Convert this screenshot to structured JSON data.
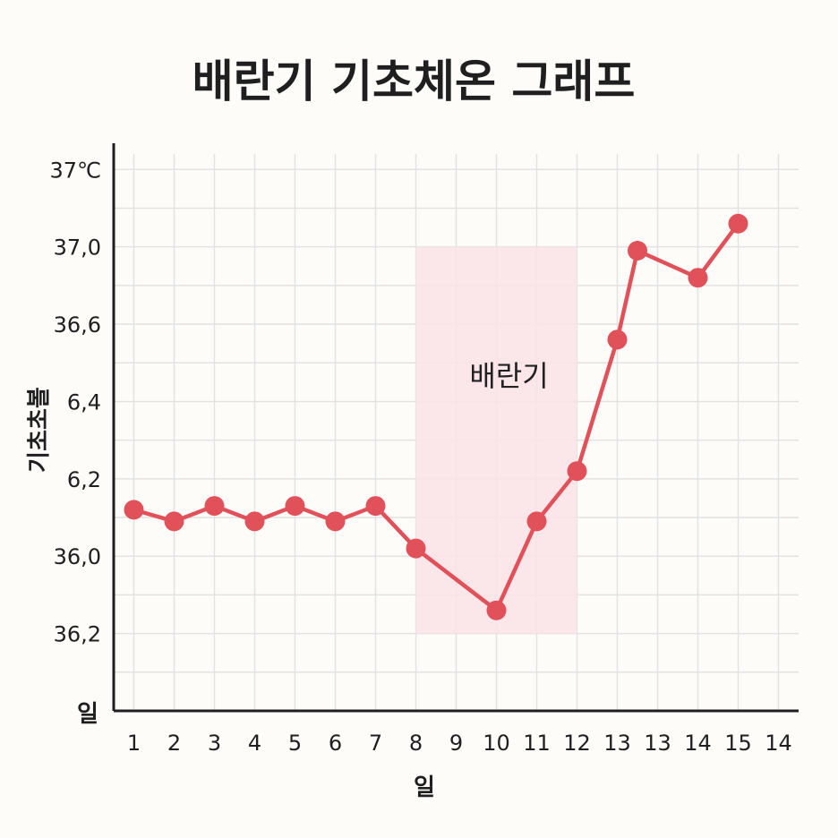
{
  "colors": {
    "background": "#fdfcf9",
    "line": "#e0515a",
    "marker": "#e0515a",
    "region": "#fbe3e8",
    "grid": "#e2e2e2",
    "axis": "#1f1f1f",
    "text": "#1f1f1f"
  },
  "chart_data": {
    "type": "line",
    "title": "배란기 기초체온 그래프",
    "xlabel": "일",
    "ylabel": "기초초볼",
    "corner_label": "일",
    "x_tick_labels": [
      "1",
      "2",
      "3",
      "4",
      "5",
      "6",
      "7",
      "8",
      "9",
      "10",
      "11",
      "12",
      "13",
      "13",
      "14",
      "15",
      "14"
    ],
    "y_tick_labels": [
      "37℃",
      "37,0",
      "36,6",
      "6,4",
      "6,2",
      "36,0",
      "36,2"
    ],
    "y_tick_values": [
      7,
      6,
      5,
      4,
      3,
      2,
      1
    ],
    "ylim": [
      0,
      7.2
    ],
    "x": [
      1,
      2,
      3,
      4,
      5,
      6,
      7,
      8,
      10,
      11,
      12,
      13,
      13.5,
      15,
      16
    ],
    "xlim": [
      0.5,
      17.5
    ],
    "series": [
      {
        "values": [
          2.6,
          2.45,
          2.65,
          2.45,
          2.65,
          2.45,
          2.65,
          2.1,
          1.3,
          2.45,
          3.1,
          4.8,
          5.95,
          5.6,
          6.3
        ]
      }
    ],
    "highlight_region": {
      "label": "배란기",
      "x_range": [
        8,
        12
      ],
      "y_range": [
        1,
        6
      ]
    },
    "grid": true,
    "legend": "none"
  }
}
